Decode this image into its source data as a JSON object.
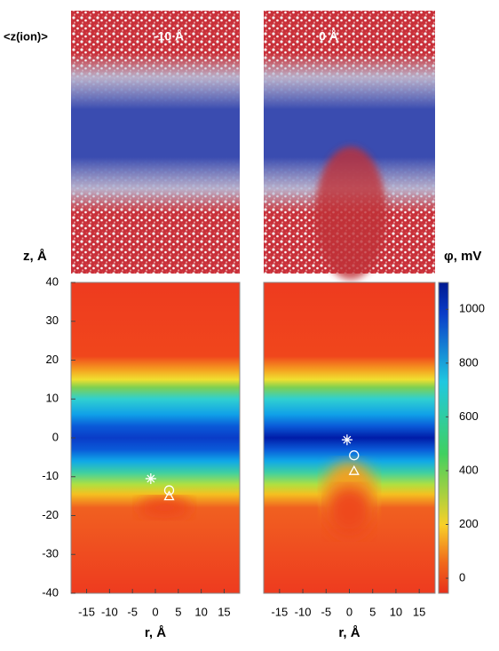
{
  "chart_data": [
    {
      "type": "heatmap",
      "title": "-10 Å",
      "annotation": "<z(ion)>",
      "ylabel": "z, Å",
      "xlabel": "r, Å",
      "xlim": [
        -18.4,
        18.4
      ],
      "xticks": [
        -15,
        -10,
        -5,
        0,
        5,
        10,
        15
      ],
      "ylim": [
        -40,
        40
      ],
      "yticks": [
        -40,
        -30,
        -20,
        -10,
        0,
        10,
        20,
        30,
        40
      ],
      "points": {
        "x": [
          -1,
          3,
          3
        ],
        "y": [
          -10.5,
          -13.5,
          -15
        ],
        "symbols": [
          "star",
          "circle",
          "triangle"
        ]
      }
    },
    {
      "type": "heatmap",
      "title": "0 Å",
      "xlabel": "r, Å",
      "xlim": [
        -18.4,
        18.4
      ],
      "xticks": [
        -15,
        -10,
        -5,
        0,
        5,
        10,
        15
      ],
      "ylim": [
        -40,
        40
      ],
      "points": {
        "x": [
          -0.5,
          1,
          1
        ],
        "y": [
          -0.5,
          -4.5,
          -8.5
        ],
        "symbols": [
          "star",
          "circle",
          "triangle"
        ]
      },
      "colorbar": {
        "label": "φ, mV",
        "lim": [
          -56,
          1100
        ],
        "ticks": [
          0,
          200,
          400,
          600,
          800,
          1000
        ]
      }
    }
  ]
}
